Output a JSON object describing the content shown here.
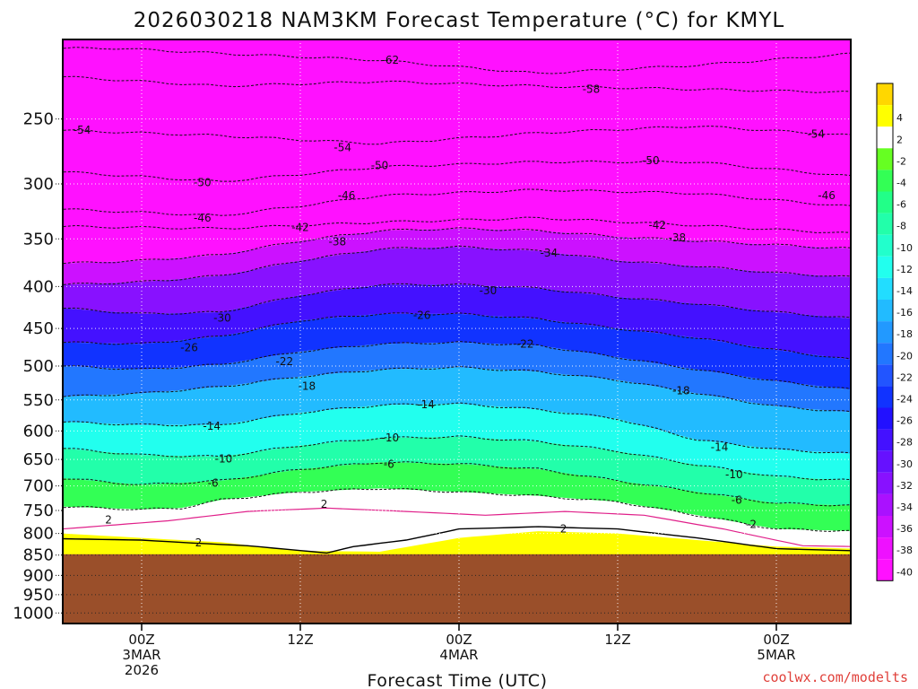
{
  "chart_data": {
    "type": "heatmap",
    "title": "2026030218 NAM3KM Forecast Temperature (°C) for KMYL",
    "xlabel": "Forecast Time (UTC)",
    "ylabel": "",
    "y_axis": {
      "scale": "log",
      "range": [
        200,
        1030
      ],
      "inverted": true,
      "ticks": [
        250,
        300,
        350,
        400,
        450,
        500,
        550,
        600,
        650,
        700,
        750,
        800,
        850,
        900,
        950,
        1000
      ]
    },
    "x_axis": {
      "range": [
        "2026-03-02T18Z",
        "2026-03-05T06Z"
      ],
      "ticks": [
        {
          "time": "2026-03-03T00Z",
          "lines": [
            "00Z",
            "3MAR",
            "2026"
          ]
        },
        {
          "time": "2026-03-03T12Z",
          "lines": [
            "12Z"
          ]
        },
        {
          "time": "2026-03-04T00Z",
          "lines": [
            "00Z",
            "4MAR"
          ]
        },
        {
          "time": "2026-03-04T12Z",
          "lines": [
            "12Z"
          ]
        },
        {
          "time": "2026-03-05T00Z",
          "lines": [
            "00Z",
            "5MAR"
          ]
        }
      ]
    },
    "grid": true,
    "colorbar": {
      "placement": "right",
      "levels": [
        {
          "label": "",
          "color": "#ffd700"
        },
        {
          "label": "4",
          "color": "#ffff00"
        },
        {
          "label": "2",
          "color": "#ffffff"
        },
        {
          "label": "-2",
          "color": "#66ff22"
        },
        {
          "label": "-4",
          "color": "#33ff55"
        },
        {
          "label": "-6",
          "color": "#22ff88"
        },
        {
          "label": "-8",
          "color": "#22ffaa"
        },
        {
          "label": "-10",
          "color": "#22ffcc"
        },
        {
          "label": "-12",
          "color": "#22ffee"
        },
        {
          "label": "-14",
          "color": "#22ddff"
        },
        {
          "label": "-16",
          "color": "#22bbff"
        },
        {
          "label": "-18",
          "color": "#2299ff"
        },
        {
          "label": "-20",
          "color": "#2277ff"
        },
        {
          "label": "-22",
          "color": "#2255ff"
        },
        {
          "label": "-24",
          "color": "#1133ff"
        },
        {
          "label": "-26",
          "color": "#2211ff"
        },
        {
          "label": "-28",
          "color": "#4411ff"
        },
        {
          "label": "-30",
          "color": "#6611ff"
        },
        {
          "label": "-32",
          "color": "#8811ff"
        },
        {
          "label": "-34",
          "color": "#aa11ff"
        },
        {
          "label": "-36",
          "color": "#cc11ff"
        },
        {
          "label": "-38",
          "color": "#ee11ff"
        },
        {
          "label": "-40",
          "color": "#ff11ff"
        }
      ]
    },
    "terrain_color": "#9a4f2a",
    "isotherm_labels": [
      {
        "label": "-62",
        "time_h": 24.8,
        "p": 212
      },
      {
        "label": "-58",
        "time_h": 40,
        "p": 230
      },
      {
        "label": "-54",
        "time_h": 1.5,
        "p": 258
      },
      {
        "label": "-54",
        "time_h": 21.2,
        "p": 271
      },
      {
        "label": "-54",
        "time_h": 57,
        "p": 261
      },
      {
        "label": "-50",
        "time_h": 10.6,
        "p": 299
      },
      {
        "label": "-50",
        "time_h": 24,
        "p": 285
      },
      {
        "label": "-50",
        "time_h": 44.5,
        "p": 281
      },
      {
        "label": "-46",
        "time_h": 10.6,
        "p": 330
      },
      {
        "label": "-46",
        "time_h": 21.5,
        "p": 310
      },
      {
        "label": "-46",
        "time_h": 57.8,
        "p": 310
      },
      {
        "label": "-42",
        "time_h": 18,
        "p": 339
      },
      {
        "label": "-42",
        "time_h": 45,
        "p": 337
      },
      {
        "label": "-38",
        "time_h": 20.8,
        "p": 353
      },
      {
        "label": "-38",
        "time_h": 46.5,
        "p": 349
      },
      {
        "label": "-34",
        "time_h": 36.8,
        "p": 364
      },
      {
        "label": "-30",
        "time_h": 12.1,
        "p": 437
      },
      {
        "label": "-30",
        "time_h": 32.2,
        "p": 405
      },
      {
        "label": "-26",
        "time_h": 9.6,
        "p": 475
      },
      {
        "label": "-26",
        "time_h": 27.2,
        "p": 434
      },
      {
        "label": "-22",
        "time_h": 16.8,
        "p": 494
      },
      {
        "label": "-22",
        "time_h": 35,
        "p": 470
      },
      {
        "label": "-18",
        "time_h": 18.5,
        "p": 529
      },
      {
        "label": "-18",
        "time_h": 46.8,
        "p": 536
      },
      {
        "label": "-14",
        "time_h": 11.3,
        "p": 592
      },
      {
        "label": "-14",
        "time_h": 27.5,
        "p": 557
      },
      {
        "label": "-14",
        "time_h": 49.7,
        "p": 628
      },
      {
        "label": "-10",
        "time_h": 12.2,
        "p": 649
      },
      {
        "label": "-10",
        "time_h": 24.8,
        "p": 612
      },
      {
        "label": "-10",
        "time_h": 50.8,
        "p": 678
      },
      {
        "label": "-6",
        "time_h": 11.4,
        "p": 695
      },
      {
        "label": "-6",
        "time_h": 24.7,
        "p": 659
      },
      {
        "label": "-6",
        "time_h": 51,
        "p": 729
      },
      {
        "label": "-2",
        "time_h": 52.1,
        "p": 780
      },
      {
        "label": "2",
        "time_h": 3.5,
        "p": 770
      },
      {
        "label": "2",
        "time_h": 10.3,
        "p": 821
      },
      {
        "label": "2",
        "time_h": 19.8,
        "p": 737
      },
      {
        "label": "2",
        "time_h": 37.9,
        "p": 790
      }
    ]
  },
  "credit": "coolwx.com/modelts"
}
